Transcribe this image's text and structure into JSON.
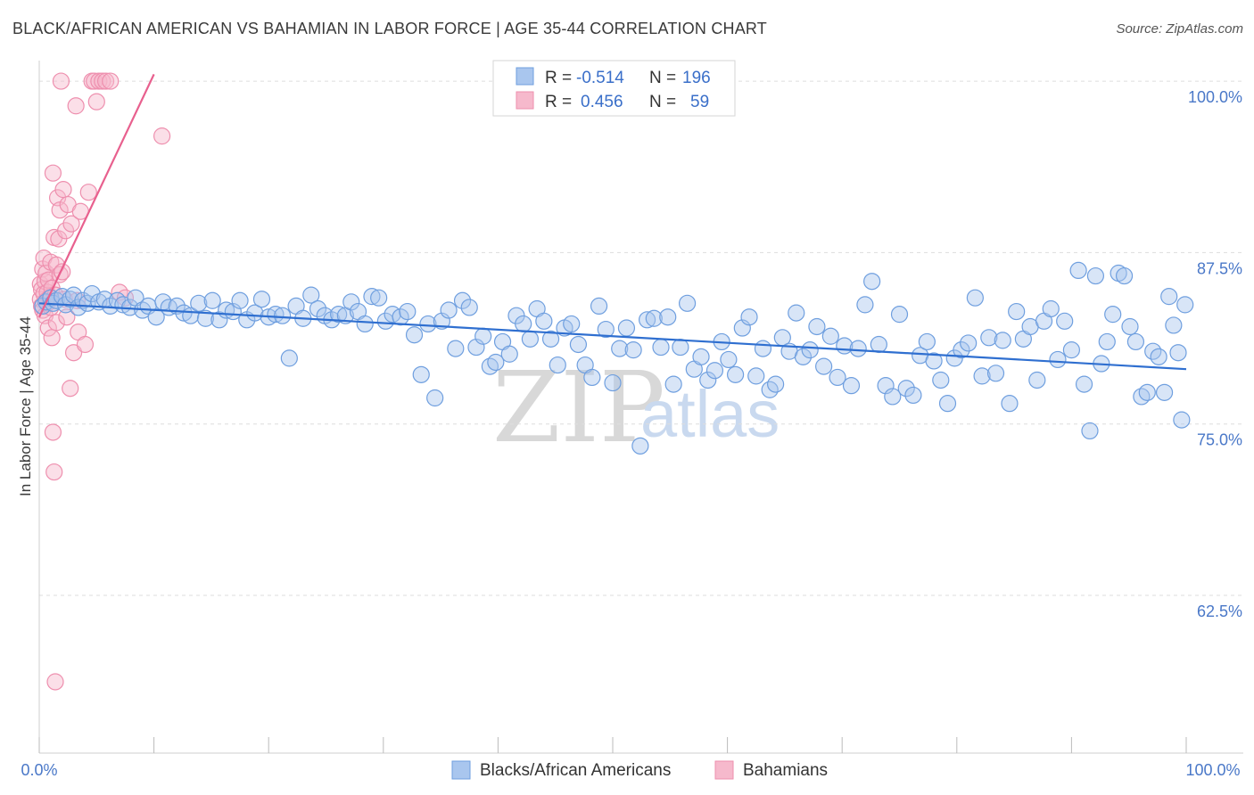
{
  "title": "BLACK/AFRICAN AMERICAN VS BAHAMIAN IN LABOR FORCE | AGE 35-44 CORRELATION CHART",
  "source": "Source: ZipAtlas.com",
  "watermark": {
    "zip": "ZIP",
    "atlas": "atlas"
  },
  "colors": {
    "blue_fill": "#a9c6ee",
    "blue_stroke": "#6f9fdf",
    "blue_line": "#2f6fd0",
    "pink_fill": "#f6b9cc",
    "pink_stroke": "#ee8fae",
    "pink_line": "#e8608e",
    "grid": "#dddddd",
    "tick_text": "#4a78c8"
  },
  "legend": {
    "r_label": "R =",
    "n_label": "N =",
    "rows": [
      {
        "r": "-0.514",
        "n": "196"
      },
      {
        "r": "0.456",
        "n": "59"
      }
    ]
  },
  "bottom_legend": [
    "Blacks/African Americans",
    "Bahamians"
  ],
  "chart_data": {
    "type": "scatter",
    "title": "BLACK/AFRICAN AMERICAN VS BAHAMIAN IN LABOR FORCE | AGE 35-44 CORRELATION CHART",
    "xlabel": "",
    "ylabel": "In Labor Force | Age 35-44",
    "xlim": [
      0,
      100
    ],
    "ylim": [
      51,
      101.5
    ],
    "x_tick_labels": [
      "0.0%",
      "100.0%"
    ],
    "y_ticks": [
      62.5,
      75.0,
      87.5,
      100.0
    ],
    "y_tick_labels": [
      "62.5%",
      "75.0%",
      "87.5%",
      "100.0%"
    ],
    "grid": true,
    "legend_position": "top-center",
    "series": [
      {
        "name": "Blacks/African Americans",
        "r": -0.514,
        "n": 196,
        "trend": [
          [
            0,
            83.8
          ],
          [
            100,
            79.0
          ]
        ],
        "points": [
          [
            0.3,
            83.6
          ],
          [
            0.6,
            83.9
          ],
          [
            1.0,
            84.2
          ],
          [
            1.2,
            83.8
          ],
          [
            1.5,
            84.0
          ],
          [
            2.0,
            84.3
          ],
          [
            2.3,
            83.7
          ],
          [
            2.7,
            84.1
          ],
          [
            3.0,
            84.4
          ],
          [
            3.4,
            83.5
          ],
          [
            3.8,
            84.0
          ],
          [
            4.2,
            83.8
          ],
          [
            4.6,
            84.5
          ],
          [
            5.2,
            83.9
          ],
          [
            5.7,
            84.1
          ],
          [
            6.2,
            83.6
          ],
          [
            6.8,
            84.0
          ],
          [
            7.3,
            83.7
          ],
          [
            7.9,
            83.5
          ],
          [
            8.4,
            84.2
          ],
          [
            9.0,
            83.3
          ],
          [
            9.5,
            83.6
          ],
          [
            10.2,
            82.8
          ],
          [
            10.8,
            83.9
          ],
          [
            11.3,
            83.5
          ],
          [
            12.0,
            83.6
          ],
          [
            12.6,
            83.1
          ],
          [
            13.2,
            82.9
          ],
          [
            13.9,
            83.8
          ],
          [
            14.5,
            82.7
          ],
          [
            15.1,
            84.0
          ],
          [
            15.7,
            82.6
          ],
          [
            16.3,
            83.3
          ],
          [
            16.9,
            83.2
          ],
          [
            17.5,
            84.0
          ],
          [
            18.1,
            82.6
          ],
          [
            18.8,
            83.1
          ],
          [
            19.4,
            84.1
          ],
          [
            20.0,
            82.8
          ],
          [
            20.6,
            83.0
          ],
          [
            21.2,
            82.9
          ],
          [
            21.8,
            79.8
          ],
          [
            22.4,
            83.6
          ],
          [
            23.0,
            82.7
          ],
          [
            23.7,
            84.4
          ],
          [
            24.3,
            83.4
          ],
          [
            24.9,
            82.9
          ],
          [
            25.5,
            82.6
          ],
          [
            26.1,
            83.0
          ],
          [
            26.7,
            82.9
          ],
          [
            27.2,
            83.9
          ],
          [
            27.8,
            83.2
          ],
          [
            28.4,
            82.3
          ],
          [
            29.0,
            84.3
          ],
          [
            29.6,
            84.2
          ],
          [
            30.2,
            82.5
          ],
          [
            30.8,
            83.0
          ],
          [
            31.5,
            82.8
          ],
          [
            32.1,
            83.2
          ],
          [
            32.7,
            81.5
          ],
          [
            33.3,
            78.6
          ],
          [
            33.9,
            82.3
          ],
          [
            34.5,
            76.9
          ],
          [
            35.1,
            82.5
          ],
          [
            35.7,
            83.3
          ],
          [
            36.3,
            80.5
          ],
          [
            36.9,
            84.0
          ],
          [
            37.5,
            83.5
          ],
          [
            38.1,
            80.6
          ],
          [
            38.7,
            81.4
          ],
          [
            39.3,
            79.2
          ],
          [
            39.8,
            79.5
          ],
          [
            40.4,
            81.0
          ],
          [
            41.0,
            80.1
          ],
          [
            41.6,
            82.9
          ],
          [
            42.2,
            82.3
          ],
          [
            42.8,
            81.2
          ],
          [
            43.4,
            83.4
          ],
          [
            44.0,
            82.5
          ],
          [
            44.6,
            81.2
          ],
          [
            45.2,
            79.3
          ],
          [
            45.8,
            82.0
          ],
          [
            46.4,
            82.3
          ],
          [
            47.0,
            80.8
          ],
          [
            47.6,
            79.3
          ],
          [
            48.2,
            78.4
          ],
          [
            48.8,
            83.6
          ],
          [
            49.4,
            81.9
          ],
          [
            50.0,
            78.0
          ],
          [
            50.6,
            80.5
          ],
          [
            51.2,
            82.0
          ],
          [
            51.8,
            80.4
          ],
          [
            52.4,
            73.4
          ],
          [
            53.0,
            82.6
          ],
          [
            53.6,
            82.7
          ],
          [
            54.2,
            80.6
          ],
          [
            54.8,
            82.8
          ],
          [
            55.3,
            77.9
          ],
          [
            55.9,
            80.6
          ],
          [
            56.5,
            83.8
          ],
          [
            57.1,
            79.0
          ],
          [
            57.7,
            79.9
          ],
          [
            58.3,
            78.2
          ],
          [
            58.9,
            78.9
          ],
          [
            59.5,
            81.0
          ],
          [
            60.1,
            79.7
          ],
          [
            60.7,
            78.6
          ],
          [
            61.3,
            82.0
          ],
          [
            61.9,
            82.8
          ],
          [
            62.5,
            78.5
          ],
          [
            63.1,
            80.5
          ],
          [
            63.7,
            77.5
          ],
          [
            64.2,
            77.9
          ],
          [
            64.8,
            81.3
          ],
          [
            65.4,
            80.3
          ],
          [
            66.0,
            83.1
          ],
          [
            66.6,
            79.9
          ],
          [
            67.2,
            80.4
          ],
          [
            67.8,
            82.1
          ],
          [
            68.4,
            79.2
          ],
          [
            69.0,
            81.4
          ],
          [
            69.6,
            78.4
          ],
          [
            70.2,
            80.7
          ],
          [
            70.8,
            77.8
          ],
          [
            71.4,
            80.5
          ],
          [
            72.0,
            83.7
          ],
          [
            72.6,
            85.4
          ],
          [
            73.2,
            80.8
          ],
          [
            73.8,
            77.8
          ],
          [
            74.4,
            77.0
          ],
          [
            75.0,
            83.0
          ],
          [
            75.6,
            77.6
          ],
          [
            76.2,
            77.1
          ],
          [
            76.8,
            80.0
          ],
          [
            77.4,
            81.0
          ],
          [
            78.0,
            79.6
          ],
          [
            78.6,
            78.2
          ],
          [
            79.2,
            76.5
          ],
          [
            79.8,
            79.8
          ],
          [
            80.4,
            80.4
          ],
          [
            81.0,
            80.9
          ],
          [
            81.6,
            84.2
          ],
          [
            82.2,
            78.5
          ],
          [
            82.8,
            81.3
          ],
          [
            83.4,
            78.7
          ],
          [
            84.0,
            81.1
          ],
          [
            84.6,
            76.5
          ],
          [
            85.2,
            83.2
          ],
          [
            85.8,
            81.2
          ],
          [
            86.4,
            82.1
          ],
          [
            87.0,
            78.2
          ],
          [
            87.6,
            82.5
          ],
          [
            88.2,
            83.4
          ],
          [
            88.8,
            79.7
          ],
          [
            89.4,
            82.5
          ],
          [
            90.0,
            80.4
          ],
          [
            90.6,
            86.2
          ],
          [
            91.1,
            77.9
          ],
          [
            91.6,
            74.5
          ],
          [
            92.1,
            85.8
          ],
          [
            92.6,
            79.4
          ],
          [
            93.1,
            81.0
          ],
          [
            93.6,
            83.0
          ],
          [
            94.1,
            86.0
          ],
          [
            94.6,
            85.8
          ],
          [
            95.1,
            82.1
          ],
          [
            95.6,
            81.0
          ],
          [
            96.1,
            77.0
          ],
          [
            96.6,
            77.3
          ],
          [
            97.1,
            80.3
          ],
          [
            97.6,
            79.9
          ],
          [
            98.1,
            77.3
          ],
          [
            98.5,
            84.3
          ],
          [
            98.9,
            82.2
          ],
          [
            99.3,
            80.2
          ],
          [
            99.6,
            75.3
          ],
          [
            99.9,
            83.7
          ]
        ]
      },
      {
        "name": "Bahamians",
        "r": 0.456,
        "n": 59,
        "trend": [
          [
            0,
            82.8
          ],
          [
            10,
            100.5
          ]
        ],
        "points": [
          [
            0.1,
            84.1
          ],
          [
            0.1,
            85.2
          ],
          [
            0.2,
            83.6
          ],
          [
            0.2,
            84.8
          ],
          [
            0.3,
            86.3
          ],
          [
            0.3,
            83.3
          ],
          [
            0.4,
            84.5
          ],
          [
            0.4,
            87.1
          ],
          [
            0.5,
            85.4
          ],
          [
            0.5,
            82.9
          ],
          [
            0.6,
            84.0
          ],
          [
            0.6,
            86.0
          ],
          [
            0.7,
            83.8
          ],
          [
            0.7,
            84.6
          ],
          [
            0.8,
            82.0
          ],
          [
            0.8,
            85.5
          ],
          [
            0.9,
            84.2
          ],
          [
            1.0,
            83.5
          ],
          [
            1.0,
            86.8
          ],
          [
            1.1,
            84.9
          ],
          [
            1.1,
            81.3
          ],
          [
            1.2,
            93.3
          ],
          [
            1.2,
            74.4
          ],
          [
            1.3,
            71.5
          ],
          [
            1.3,
            88.6
          ],
          [
            1.4,
            84.4
          ],
          [
            1.5,
            86.6
          ],
          [
            1.5,
            82.4
          ],
          [
            1.6,
            91.5
          ],
          [
            1.7,
            88.5
          ],
          [
            1.8,
            90.6
          ],
          [
            1.8,
            85.9
          ],
          [
            1.9,
            100.0
          ],
          [
            2.0,
            86.1
          ],
          [
            2.1,
            92.1
          ],
          [
            2.2,
            84.1
          ],
          [
            2.3,
            89.1
          ],
          [
            2.4,
            82.8
          ],
          [
            2.5,
            91.0
          ],
          [
            2.7,
            77.6
          ],
          [
            2.8,
            89.6
          ],
          [
            3.0,
            80.2
          ],
          [
            3.2,
            98.2
          ],
          [
            3.4,
            81.7
          ],
          [
            3.6,
            90.5
          ],
          [
            4.0,
            80.8
          ],
          [
            4.3,
            91.9
          ],
          [
            4.6,
            100.0
          ],
          [
            4.8,
            100.0
          ],
          [
            5.0,
            98.5
          ],
          [
            5.2,
            100.0
          ],
          [
            5.5,
            100.0
          ],
          [
            5.8,
            100.0
          ],
          [
            6.2,
            100.0
          ],
          [
            7.0,
            84.6
          ],
          [
            7.5,
            84.2
          ],
          [
            10.7,
            96.0
          ],
          [
            1.4,
            56.2
          ],
          [
            3.3,
            84.0
          ]
        ]
      }
    ]
  }
}
